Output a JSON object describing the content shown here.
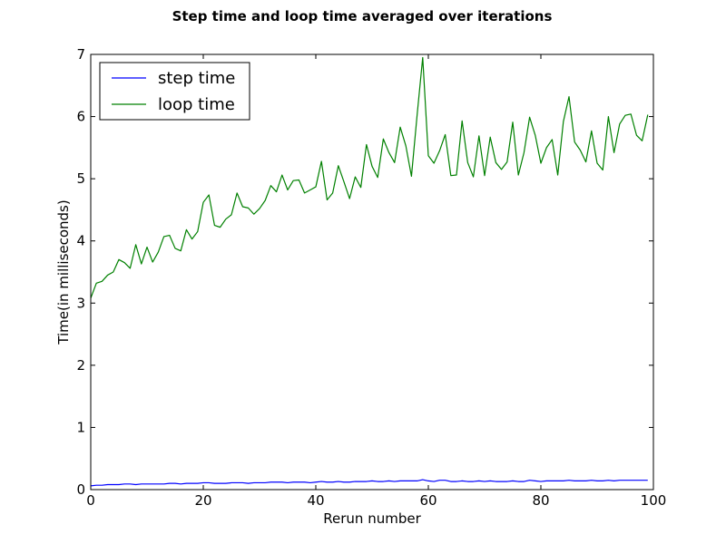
{
  "chart_data": {
    "type": "line",
    "title": "Step time and loop time averaged over iterations",
    "xlabel": "Rerun number",
    "ylabel": "Time(in milliseconds)",
    "xlim": [
      0,
      100
    ],
    "ylim": [
      0,
      7
    ],
    "xticks": [
      "0",
      "20",
      "40",
      "60",
      "80",
      "100"
    ],
    "yticks": [
      "0",
      "1",
      "2",
      "3",
      "4",
      "5",
      "6",
      "7"
    ],
    "grid": false,
    "legend_position": "top-left",
    "x": [
      0,
      1,
      2,
      3,
      4,
      5,
      6,
      7,
      8,
      9,
      10,
      11,
      12,
      13,
      14,
      15,
      16,
      17,
      18,
      19,
      20,
      21,
      22,
      23,
      24,
      25,
      26,
      27,
      28,
      29,
      30,
      31,
      32,
      33,
      34,
      35,
      36,
      37,
      38,
      39,
      40,
      41,
      42,
      43,
      44,
      45,
      46,
      47,
      48,
      49,
      50,
      51,
      52,
      53,
      54,
      55,
      56,
      57,
      58,
      59,
      60,
      61,
      62,
      63,
      64,
      65,
      66,
      67,
      68,
      69,
      70,
      71,
      72,
      73,
      74,
      75,
      76,
      77,
      78,
      79,
      80,
      81,
      82,
      83,
      84,
      85,
      86,
      87,
      88,
      89,
      90,
      91,
      92,
      93,
      94,
      95,
      96,
      97,
      98,
      99
    ],
    "series": [
      {
        "name": "step time",
        "color": "#0000ff",
        "values": [
          0.06,
          0.07,
          0.07,
          0.08,
          0.08,
          0.08,
          0.09,
          0.09,
          0.08,
          0.09,
          0.09,
          0.09,
          0.09,
          0.09,
          0.1,
          0.1,
          0.09,
          0.1,
          0.1,
          0.1,
          0.11,
          0.11,
          0.1,
          0.1,
          0.1,
          0.11,
          0.11,
          0.11,
          0.1,
          0.11,
          0.11,
          0.11,
          0.12,
          0.12,
          0.12,
          0.11,
          0.12,
          0.12,
          0.12,
          0.11,
          0.12,
          0.13,
          0.12,
          0.12,
          0.13,
          0.12,
          0.12,
          0.13,
          0.13,
          0.13,
          0.14,
          0.13,
          0.13,
          0.14,
          0.13,
          0.14,
          0.14,
          0.14,
          0.14,
          0.16,
          0.14,
          0.13,
          0.15,
          0.15,
          0.13,
          0.13,
          0.14,
          0.13,
          0.13,
          0.14,
          0.13,
          0.14,
          0.13,
          0.13,
          0.13,
          0.14,
          0.13,
          0.13,
          0.15,
          0.14,
          0.13,
          0.14,
          0.14,
          0.14,
          0.14,
          0.15,
          0.14,
          0.14,
          0.14,
          0.15,
          0.14,
          0.14,
          0.15,
          0.14,
          0.15,
          0.15,
          0.15,
          0.15,
          0.15,
          0.15
        ]
      },
      {
        "name": "loop time",
        "color": "#008000",
        "values": [
          3.08,
          3.32,
          3.35,
          3.45,
          3.5,
          3.7,
          3.65,
          3.56,
          3.94,
          3.63,
          3.9,
          3.66,
          3.82,
          4.07,
          4.09,
          3.88,
          3.84,
          4.18,
          4.03,
          4.15,
          4.62,
          4.74,
          4.25,
          4.22,
          4.35,
          4.42,
          4.77,
          4.55,
          4.53,
          4.43,
          4.52,
          4.65,
          4.89,
          4.79,
          5.06,
          4.82,
          4.97,
          4.98,
          4.77,
          4.82,
          4.87,
          5.28,
          4.66,
          4.77,
          5.21,
          4.95,
          4.68,
          5.03,
          4.86,
          5.55,
          5.2,
          5.02,
          5.64,
          5.42,
          5.26,
          5.83,
          5.53,
          5.04,
          6.02,
          6.95,
          5.37,
          5.25,
          5.45,
          5.71,
          5.05,
          5.06,
          5.93,
          5.26,
          5.03,
          5.69,
          5.05,
          5.67,
          5.26,
          5.15,
          5.27,
          5.91,
          5.06,
          5.42,
          5.99,
          5.7,
          5.25,
          5.5,
          5.63,
          5.06,
          5.92,
          6.32,
          5.59,
          5.46,
          5.27,
          5.77,
          5.25,
          5.14,
          6.0,
          5.42,
          5.88,
          6.02,
          6.04,
          5.7,
          5.61,
          6.03
        ]
      }
    ]
  }
}
